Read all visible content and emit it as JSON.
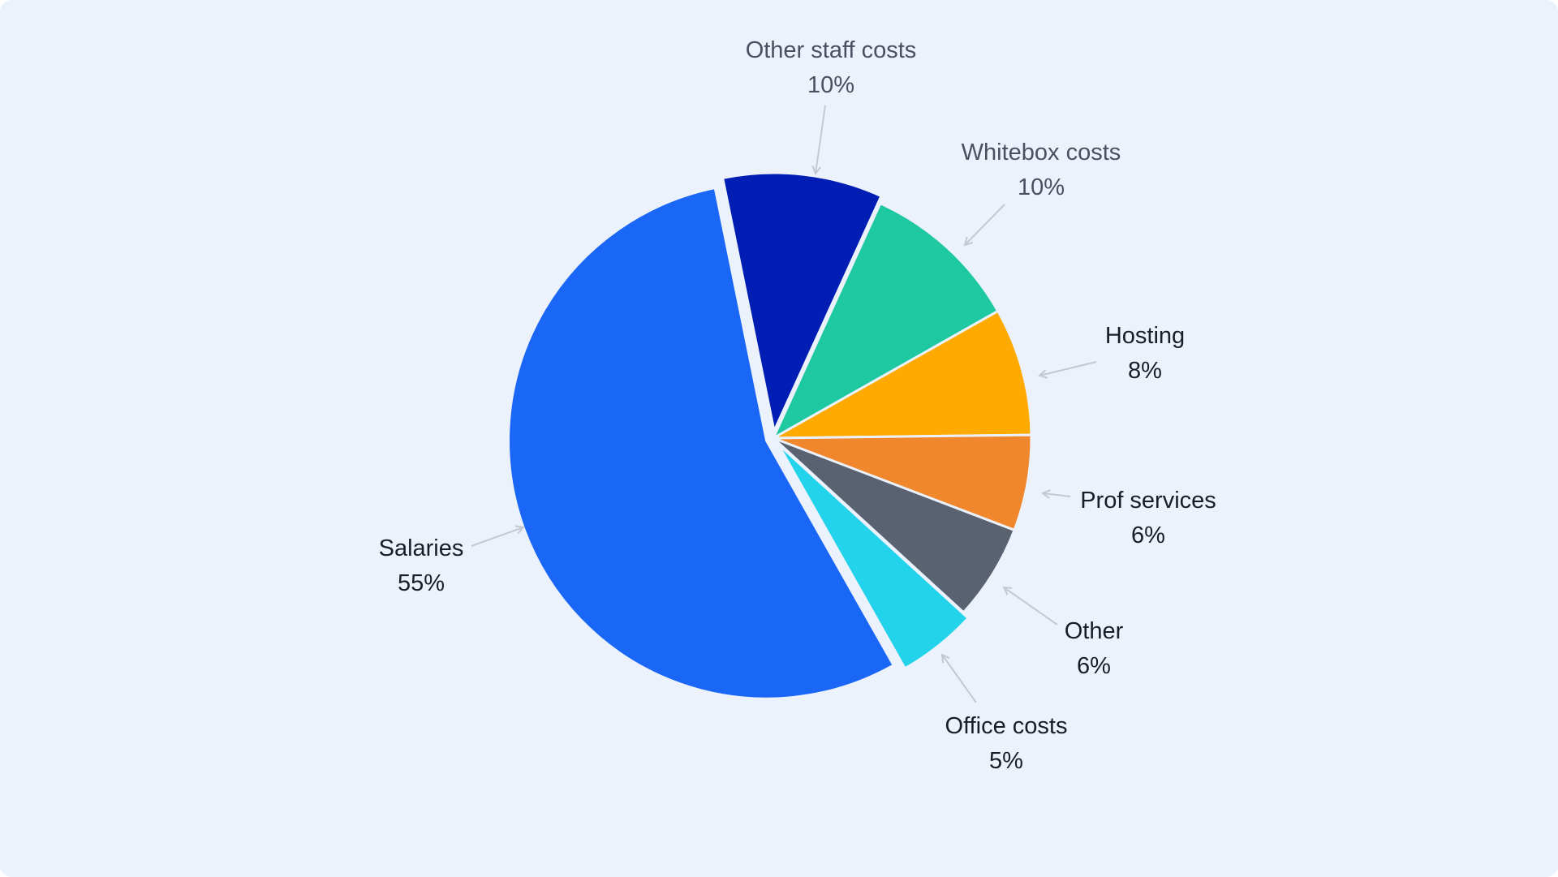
{
  "chart_data": {
    "type": "pie",
    "title": "",
    "legend": "none",
    "slices": [
      {
        "label": "Other staff costs",
        "pct_label": "10%",
        "value": 10,
        "color": "#001eb4",
        "text_color": "#4b5060",
        "explode": true
      },
      {
        "label": "Whitebox costs",
        "pct_label": "10%",
        "value": 10,
        "color": "#1ec8a0",
        "text_color": "#4b5060",
        "explode": false
      },
      {
        "label": "Hosting",
        "pct_label": "8%",
        "value": 8,
        "color": "#ffaa00",
        "text_color": "#1a1d24",
        "explode": false
      },
      {
        "label": "Prof services",
        "pct_label": "6%",
        "value": 6,
        "color": "#f0872d",
        "text_color": "#1a1d24",
        "explode": false
      },
      {
        "label": "Other",
        "pct_label": "6%",
        "value": 6,
        "color": "#5a6170",
        "text_color": "#1a1d24",
        "explode": false
      },
      {
        "label": "Office costs",
        "pct_label": "5%",
        "value": 5,
        "color": "#23d2eb",
        "text_color": "#1a1d24",
        "explode": true
      },
      {
        "label": "Salaries",
        "pct_label": "55%",
        "value": 55,
        "color": "#1966f7",
        "text_color": "#1a1d24",
        "explode": true
      }
    ]
  }
}
